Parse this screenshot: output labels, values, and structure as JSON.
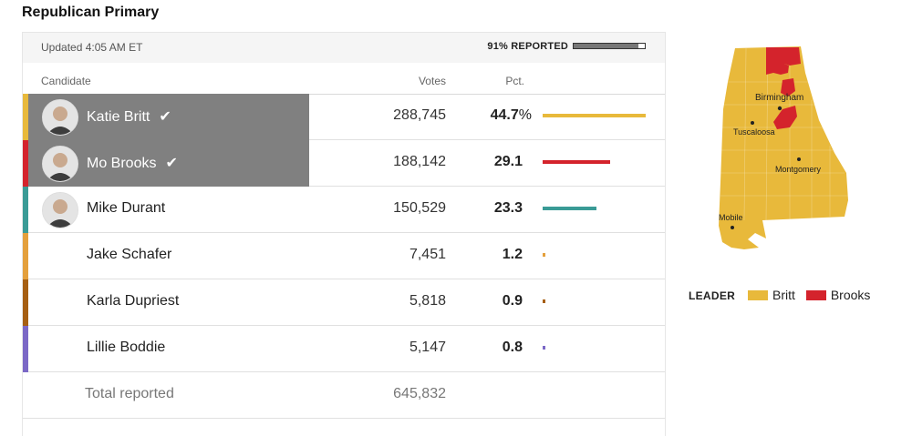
{
  "header": {
    "title": "Republican Primary"
  },
  "status": {
    "updated": "Updated 4:05 AM ET",
    "reported_label": "91% REPORTED",
    "reported_fraction": 0.91
  },
  "columns": {
    "candidate": "Candidate",
    "votes": "Votes",
    "pct": "Pct."
  },
  "candidates": [
    {
      "name": "Katie Britt",
      "votes": "288,745",
      "pct": "44.7",
      "pct_sign": "%",
      "pct_value": 44.7,
      "winner": true,
      "color": "#e8b93b",
      "has_photo": true
    },
    {
      "name": "Mo Brooks",
      "votes": "188,142",
      "pct": "29.1",
      "pct_sign": "",
      "pct_value": 29.1,
      "winner": true,
      "color": "#d4232c",
      "has_photo": true
    },
    {
      "name": "Mike Durant",
      "votes": "150,529",
      "pct": "23.3",
      "pct_sign": "",
      "pct_value": 23.3,
      "winner": false,
      "color": "#3a9b96",
      "has_photo": true
    },
    {
      "name": "Jake Schafer",
      "votes": "7,451",
      "pct": "1.2",
      "pct_sign": "",
      "pct_value": 1.2,
      "winner": false,
      "color": "#e4a03c",
      "has_photo": false
    },
    {
      "name": "Karla Dupriest",
      "votes": "5,818",
      "pct": "0.9",
      "pct_sign": "",
      "pct_value": 0.9,
      "winner": false,
      "color": "#a65f12",
      "has_photo": false
    },
    {
      "name": "Lillie Boddie",
      "votes": "5,147",
      "pct": "0.8",
      "pct_sign": "",
      "pct_value": 0.8,
      "winner": false,
      "color": "#7b68c6",
      "has_photo": false
    }
  ],
  "total": {
    "label": "Total reported",
    "votes": "645,832"
  },
  "map": {
    "cities": [
      "Birmingham",
      "Tuscaloosa",
      "Montgomery",
      "Mobile"
    ],
    "colors": {
      "britt": "#e8b93b",
      "brooks": "#d4232c"
    }
  },
  "legend": {
    "label": "LEADER",
    "items": [
      {
        "name": "Britt",
        "color": "#e8b93b"
      },
      {
        "name": "Brooks",
        "color": "#d4232c"
      }
    ]
  }
}
